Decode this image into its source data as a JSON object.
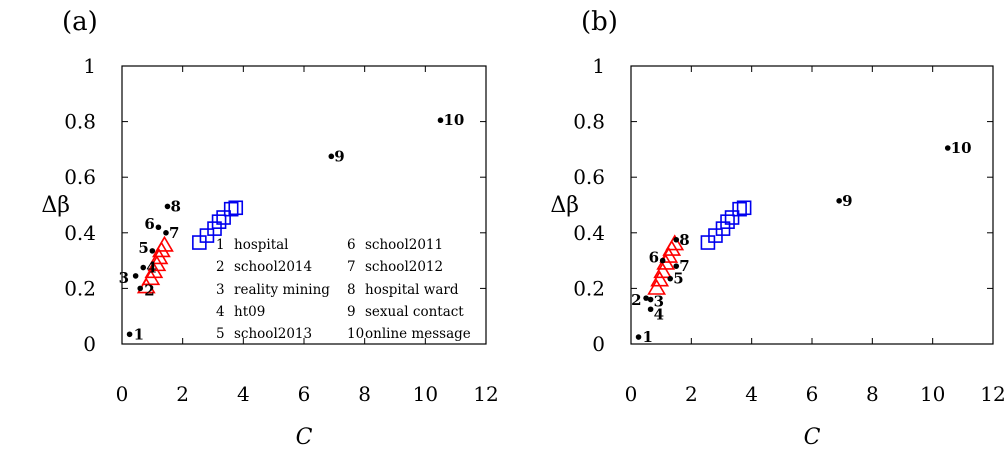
{
  "chart_data": [
    {
      "panel": "(a)",
      "type": "scatter",
      "xlabel": "C",
      "ylabel": "Δβ",
      "xlim": [
        0,
        12
      ],
      "ylim": [
        0,
        1
      ],
      "xticks": [
        "0",
        "2",
        "4",
        "6",
        "8",
        "10",
        "12"
      ],
      "yticks": [
        "0",
        "0.2",
        "0.4",
        "0.6",
        "0.8",
        "1"
      ],
      "legend_position": "lower-right",
      "legend": [
        {
          "num": "1",
          "name": "hospital"
        },
        {
          "num": "2",
          "name": "school2014"
        },
        {
          "num": "3",
          "name": "reality mining"
        },
        {
          "num": "4",
          "name": "ht09"
        },
        {
          "num": "5",
          "name": "school2013"
        },
        {
          "num": "6",
          "name": "school2011"
        },
        {
          "num": "7",
          "name": "school2012"
        },
        {
          "num": "8",
          "name": "hospital ward"
        },
        {
          "num": "9",
          "name": "sexual contact"
        },
        {
          "num": "10",
          "name": "online message"
        }
      ],
      "points": [
        {
          "label": "1",
          "x": 0.25,
          "y": 0.035
        },
        {
          "label": "2",
          "x": 0.6,
          "y": 0.2
        },
        {
          "label": "3",
          "x": 0.45,
          "y": 0.245
        },
        {
          "label": "4",
          "x": 0.7,
          "y": 0.275
        },
        {
          "label": "5",
          "x": 1.0,
          "y": 0.335
        },
        {
          "label": "6",
          "x": 1.2,
          "y": 0.42
        },
        {
          "label": "7",
          "x": 1.45,
          "y": 0.4
        },
        {
          "label": "8",
          "x": 1.5,
          "y": 0.495
        },
        {
          "label": "9",
          "x": 6.9,
          "y": 0.675
        },
        {
          "label": "10",
          "x": 10.5,
          "y": 0.805
        }
      ],
      "triangles": [
        {
          "x": 0.8,
          "y": 0.205
        },
        {
          "x": 0.95,
          "y": 0.235
        },
        {
          "x": 1.05,
          "y": 0.26
        },
        {
          "x": 1.15,
          "y": 0.285
        },
        {
          "x": 1.22,
          "y": 0.31
        },
        {
          "x": 1.3,
          "y": 0.335
        },
        {
          "x": 1.4,
          "y": 0.355
        }
      ],
      "squares": [
        {
          "x": 2.55,
          "y": 0.365
        },
        {
          "x": 2.8,
          "y": 0.39
        },
        {
          "x": 3.05,
          "y": 0.415
        },
        {
          "x": 3.2,
          "y": 0.44
        },
        {
          "x": 3.35,
          "y": 0.455
        },
        {
          "x": 3.6,
          "y": 0.485
        },
        {
          "x": 3.75,
          "y": 0.49
        }
      ]
    },
    {
      "panel": "(b)",
      "type": "scatter",
      "xlabel": "C",
      "ylabel": "Δβ",
      "xlim": [
        0,
        12
      ],
      "ylim": [
        0,
        1
      ],
      "xticks": [
        "0",
        "2",
        "4",
        "6",
        "8",
        "10",
        "12"
      ],
      "yticks": [
        "0",
        "0.2",
        "0.4",
        "0.6",
        "0.8",
        "1"
      ],
      "points": [
        {
          "label": "1",
          "x": 0.25,
          "y": 0.025
        },
        {
          "label": "2",
          "x": 0.5,
          "y": 0.165
        },
        {
          "label": "3",
          "x": 0.65,
          "y": 0.16
        },
        {
          "label": "4",
          "x": 0.65,
          "y": 0.125
        },
        {
          "label": "5",
          "x": 1.3,
          "y": 0.235
        },
        {
          "label": "6",
          "x": 1.05,
          "y": 0.3
        },
        {
          "label": "7",
          "x": 1.5,
          "y": 0.28
        },
        {
          "label": "8",
          "x": 1.5,
          "y": 0.375
        },
        {
          "label": "9",
          "x": 6.9,
          "y": 0.515
        },
        {
          "label": "10",
          "x": 10.5,
          "y": 0.705
        }
      ],
      "triangles": [
        {
          "x": 0.85,
          "y": 0.2
        },
        {
          "x": 0.95,
          "y": 0.23
        },
        {
          "x": 1.05,
          "y": 0.26
        },
        {
          "x": 1.15,
          "y": 0.29
        },
        {
          "x": 1.25,
          "y": 0.315
        },
        {
          "x": 1.35,
          "y": 0.34
        },
        {
          "x": 1.45,
          "y": 0.36
        }
      ],
      "squares": [
        {
          "x": 2.55,
          "y": 0.365
        },
        {
          "x": 2.8,
          "y": 0.39
        },
        {
          "x": 3.05,
          "y": 0.415
        },
        {
          "x": 3.2,
          "y": 0.44
        },
        {
          "x": 3.35,
          "y": 0.455
        },
        {
          "x": 3.6,
          "y": 0.485
        },
        {
          "x": 3.75,
          "y": 0.49
        }
      ]
    }
  ],
  "colors": {
    "triangles": "#ff0000",
    "squares": "#0000ee",
    "points": "#000000",
    "axis": "#000000"
  }
}
